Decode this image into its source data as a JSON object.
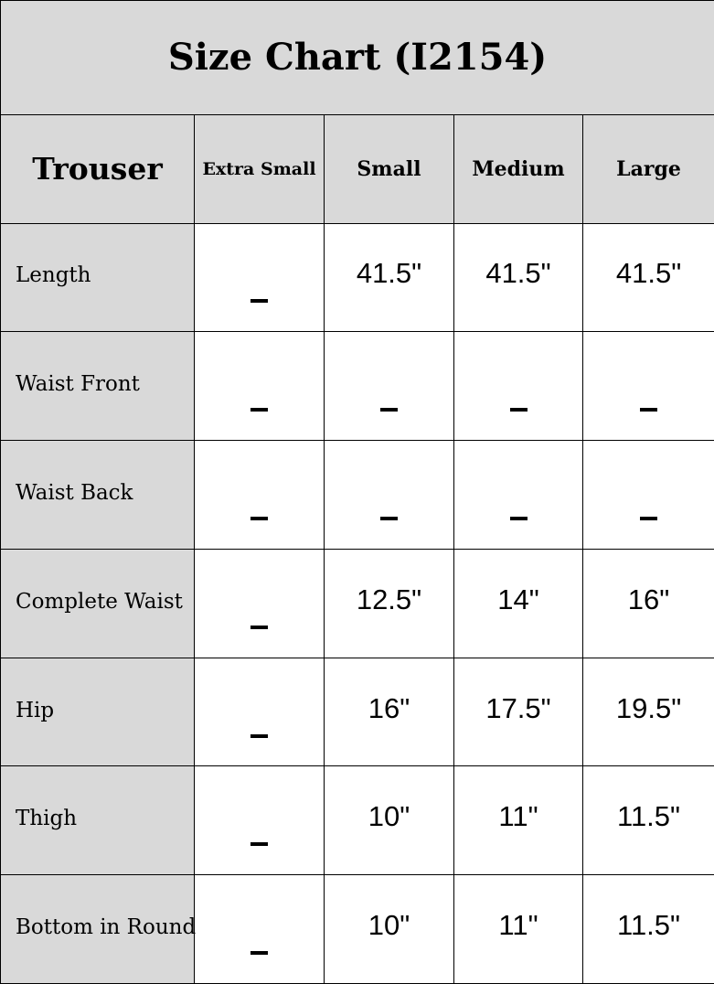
{
  "title": "Size Chart (I2154)",
  "headers": [
    "Trouser",
    "Extra Small",
    "Small",
    "Medium",
    "Large"
  ],
  "rows": [
    {
      "label": "Length",
      "values": [
        "_",
        "41.5\"",
        "41.5\"",
        "41.5\""
      ]
    },
    {
      "label": "Waist Front",
      "values": [
        "_",
        "_",
        "_",
        "_"
      ]
    },
    {
      "label": "Waist Back",
      "values": [
        "_",
        "_",
        "_",
        "_"
      ]
    },
    {
      "label": "Complete Waist",
      "values": [
        "_",
        "12.5\"",
        "14\"",
        "16\""
      ]
    },
    {
      "label": "Hip",
      "values": [
        "_",
        "16\"",
        "17.5\"",
        "19.5\""
      ]
    },
    {
      "label": "Thigh",
      "values": [
        "_",
        "10\"",
        "11\"",
        "11.5\""
      ]
    },
    {
      "label": "Bottom in Round",
      "values": [
        "_",
        "10\"",
        "11\"",
        "11.5\""
      ]
    }
  ],
  "colors": {
    "header_bg": "#d9d9d9",
    "cell_bg": "#ffffff",
    "border": "#000000"
  }
}
